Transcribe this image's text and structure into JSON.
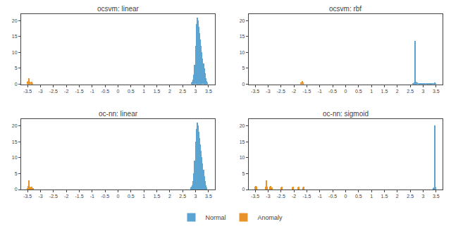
{
  "chart_data": [
    {
      "type": "bar",
      "title": "ocsvm: linear",
      "xlim": [
        -3.75,
        3.75
      ],
      "ylim": [
        0,
        22
      ],
      "xticks": [
        -3.5,
        -3.0,
        -2.5,
        -2.0,
        -1.5,
        -1.0,
        -0.5,
        0.0,
        0.5,
        1.0,
        1.5,
        2.0,
        2.5,
        3.0,
        3.5
      ],
      "yticks": [
        0,
        5,
        10,
        15,
        20
      ],
      "grid": false,
      "legend": "lower center",
      "series": [
        {
          "name": "Normal",
          "color": "#5ba3d0",
          "x": [
            2.85,
            2.88,
            2.91,
            2.94,
            2.97,
            3.0,
            3.03,
            3.06,
            3.09,
            3.12,
            3.15,
            3.18,
            3.21,
            3.24,
            3.27,
            3.3,
            3.33,
            3.36,
            3.39,
            3.42,
            3.45
          ],
          "values": [
            0.5,
            0.8,
            1.5,
            3.0,
            6.0,
            12.0,
            19.0,
            21.0,
            20.0,
            18.0,
            16.0,
            14.0,
            12.0,
            10.0,
            8.0,
            6.5,
            5.0,
            3.5,
            2.0,
            1.0,
            0.5
          ]
        },
        {
          "name": "Anomaly",
          "color": "#e8922a",
          "x": [
            -3.5,
            -3.47,
            -3.44,
            -3.41,
            -3.38,
            -3.35,
            -3.32
          ],
          "values": [
            0.8,
            1.0,
            1.8,
            0.8,
            0.5,
            0.8,
            0.3
          ]
        }
      ]
    },
    {
      "type": "bar",
      "title": "ocsvm: rbf",
      "xlim": [
        -3.75,
        3.75
      ],
      "ylim": [
        0,
        22
      ],
      "xticks": [
        -3.5,
        -3.0,
        -2.5,
        -2.0,
        -1.5,
        -1.0,
        -0.5,
        0.0,
        0.5,
        1.0,
        1.5,
        2.0,
        2.5,
        3.0,
        3.5
      ],
      "yticks": [
        0,
        5,
        10,
        15,
        20
      ],
      "grid": false,
      "series": [
        {
          "name": "Normal",
          "color": "#5ba3d0",
          "x": [
            2.6,
            2.63,
            2.66,
            2.69,
            2.72,
            2.75,
            2.78,
            2.81,
            2.84,
            2.87,
            2.9,
            2.93,
            2.96,
            2.99,
            3.02,
            3.05,
            3.08,
            3.11,
            3.14,
            3.17,
            3.2,
            3.23,
            3.26,
            3.29,
            3.32,
            3.35,
            3.38,
            3.41,
            3.44,
            3.47
          ],
          "values": [
            0.3,
            0.4,
            0.5,
            13.5,
            0.8,
            0.6,
            0.5,
            0.4,
            0.4,
            0.4,
            0.4,
            0.3,
            0.3,
            0.3,
            0.4,
            0.3,
            0.3,
            0.3,
            0.3,
            0.3,
            0.4,
            0.3,
            0.3,
            0.3,
            0.3,
            0.4,
            0.3,
            0.4,
            0.5,
            0.4
          ]
        },
        {
          "name": "Anomaly",
          "color": "#e8922a",
          "x": [
            -1.72,
            -1.69,
            -1.66
          ],
          "values": [
            0.5,
            1.0,
            0.5
          ]
        }
      ]
    },
    {
      "type": "bar",
      "title": "oc-nn: linear",
      "xlim": [
        -3.75,
        3.75
      ],
      "ylim": [
        0,
        22
      ],
      "xticks": [
        -3.5,
        -3.0,
        -2.5,
        -2.0,
        -1.5,
        -1.0,
        -0.5,
        0.0,
        0.5,
        1.0,
        1.5,
        2.0,
        2.5,
        3.0,
        3.5
      ],
      "yticks": [
        0,
        5,
        10,
        15,
        20
      ],
      "grid": false,
      "series": [
        {
          "name": "Normal",
          "color": "#5ba3d0",
          "x": [
            2.82,
            2.85,
            2.88,
            2.91,
            2.94,
            2.97,
            3.0,
            3.03,
            3.06,
            3.09,
            3.12,
            3.15,
            3.18,
            3.21,
            3.24,
            3.27,
            3.3,
            3.33,
            3.36,
            3.39,
            3.42
          ],
          "values": [
            0.5,
            0.8,
            1.2,
            2.5,
            5.0,
            9.0,
            15.0,
            19.0,
            21.0,
            20.0,
            18.0,
            16.0,
            14.0,
            12.0,
            10.0,
            8.0,
            6.0,
            4.0,
            2.5,
            1.2,
            0.5
          ]
        },
        {
          "name": "Anomaly",
          "color": "#e8922a",
          "x": [
            -3.5,
            -3.47,
            -3.44,
            -3.41,
            -3.38,
            -3.35,
            -3.32,
            -3.29
          ],
          "values": [
            0.4,
            1.0,
            2.8,
            0.8,
            0.5,
            0.8,
            0.4,
            0.3
          ]
        }
      ]
    },
    {
      "type": "bar",
      "title": "oc-nn: sigmoid",
      "xlim": [
        -3.75,
        3.75
      ],
      "ylim": [
        0,
        22
      ],
      "xticks": [
        -3.5,
        -3.0,
        -2.5,
        -2.0,
        -1.5,
        -1.0,
        -0.5,
        0.0,
        0.5,
        1.0,
        1.5,
        2.0,
        2.5,
        3.0,
        3.5
      ],
      "yticks": [
        0,
        5,
        10,
        15,
        20
      ],
      "grid": false,
      "series": [
        {
          "name": "Normal",
          "color": "#5ba3d0",
          "x": [
            3.4,
            3.43,
            3.46,
            3.49
          ],
          "values": [
            0.3,
            0.5,
            20.0,
            0.5
          ]
        },
        {
          "name": "Anomaly",
          "color": "#e8922a",
          "x": [
            -3.5,
            -3.47,
            -3.44,
            -3.1,
            -3.07,
            -3.04,
            -2.92,
            -2.89,
            -2.86,
            -2.5,
            -2.47,
            -2.05,
            -2.02,
            -1.85,
            -1.82,
            -1.65,
            -1.62
          ],
          "values": [
            0.8,
            1.0,
            0.8,
            0.8,
            2.8,
            0.8,
            0.8,
            1.0,
            0.5,
            0.5,
            0.8,
            0.5,
            0.8,
            0.5,
            0.8,
            0.5,
            0.8
          ]
        }
      ]
    }
  ]
}
